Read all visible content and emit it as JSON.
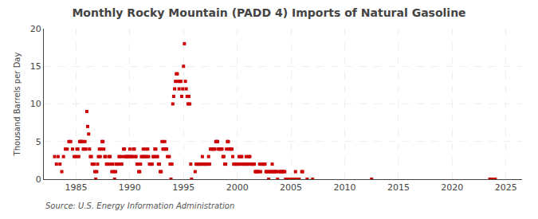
{
  "chart_data": {
    "type": "scatter",
    "title": "Monthly Rocky Mountain (PADD 4) Imports of Natural Gasoline",
    "ylabel": "Thousand Barrels per Day",
    "annotations": [
      "Source: U.S. Energy Information Administration"
    ],
    "xlim": [
      1982.0,
      2026.5
    ],
    "ylim": [
      0,
      20
    ],
    "xticks": [
      1985,
      1990,
      1995,
      2000,
      2005,
      2010,
      2015,
      2020,
      2025
    ],
    "yticks": [
      0,
      5,
      10,
      15,
      20
    ],
    "grid": true,
    "color": "#cc0000",
    "marker": "square",
    "x": [
      1983.0,
      1983.17,
      1983.33,
      1983.5,
      1983.67,
      1983.83,
      1984.0,
      1984.17,
      1984.33,
      1984.5,
      1984.67,
      1984.83,
      1985.0,
      1985.08,
      1985.17,
      1985.25,
      1985.33,
      1985.42,
      1985.5,
      1985.58,
      1985.67,
      1985.75,
      1985.83,
      1985.92,
      1986.0,
      1986.08,
      1986.17,
      1986.25,
      1986.33,
      1986.42,
      1986.5,
      1986.58,
      1986.67,
      1986.75,
      1986.83,
      1986.92,
      1987.0,
      1987.08,
      1987.17,
      1987.25,
      1987.33,
      1987.42,
      1987.5,
      1987.58,
      1987.67,
      1987.75,
      1987.83,
      1987.92,
      1988.0,
      1988.08,
      1988.17,
      1988.25,
      1988.33,
      1988.42,
      1988.5,
      1988.58,
      1988.67,
      1988.75,
      1988.83,
      1988.92,
      1989.0,
      1989.08,
      1989.17,
      1989.25,
      1989.33,
      1989.42,
      1989.5,
      1989.58,
      1989.67,
      1989.75,
      1989.83,
      1989.92,
      1990.0,
      1990.08,
      1990.17,
      1990.25,
      1990.33,
      1990.42,
      1990.5,
      1990.58,
      1990.67,
      1990.75,
      1990.83,
      1990.92,
      1991.0,
      1991.08,
      1991.17,
      1991.25,
      1991.33,
      1991.42,
      1991.5,
      1991.58,
      1991.67,
      1991.75,
      1991.83,
      1991.92,
      1992.0,
      1992.08,
      1992.17,
      1992.25,
      1992.33,
      1992.42,
      1992.5,
      1992.58,
      1992.67,
      1992.75,
      1992.83,
      1992.92,
      1993.0,
      1993.08,
      1993.17,
      1993.25,
      1993.33,
      1993.42,
      1993.5,
      1993.67,
      1993.75,
      1993.83,
      1993.92,
      1994.0,
      1994.08,
      1994.17,
      1994.25,
      1994.33,
      1994.42,
      1994.5,
      1994.58,
      1994.67,
      1994.75,
      1994.83,
      1994.92,
      1995.0,
      1995.08,
      1995.17,
      1995.25,
      1995.33,
      1995.42,
      1995.5,
      1995.58,
      1995.67,
      1995.75,
      1996.08,
      1996.17,
      1996.25,
      1996.33,
      1996.42,
      1996.5,
      1996.58,
      1996.67,
      1996.75,
      1996.83,
      1996.92,
      1997.0,
      1997.08,
      1997.17,
      1997.25,
      1997.33,
      1997.42,
      1997.5,
      1997.58,
      1997.67,
      1997.75,
      1997.83,
      1997.92,
      1998.0,
      1998.08,
      1998.17,
      1998.25,
      1998.33,
      1998.42,
      1998.5,
      1998.58,
      1998.67,
      1998.75,
      1998.83,
      1998.92,
      1999.0,
      1999.08,
      1999.17,
      1999.25,
      1999.33,
      1999.42,
      1999.5,
      1999.58,
      1999.67,
      1999.75,
      1999.83,
      1999.92,
      2000.0,
      2000.08,
      2000.17,
      2000.25,
      2000.33,
      2000.42,
      2000.5,
      2000.58,
      2000.67,
      2000.75,
      2000.83,
      2000.92,
      2001.0,
      2001.08,
      2001.17,
      2001.25,
      2001.33,
      2001.42,
      2001.5,
      2001.58,
      2001.67,
      2001.75,
      2001.83,
      2001.92,
      2002.0,
      2002.08,
      2002.17,
      2002.25,
      2002.33,
      2002.42,
      2002.5,
      2002.58,
      2002.67,
      2002.75,
      2002.83,
      2002.92,
      2003.0,
      2003.08,
      2003.17,
      2003.25,
      2003.33,
      2003.42,
      2003.5,
      2003.58,
      2003.67,
      2003.75,
      2003.92,
      2004.0,
      2004.08,
      2004.17,
      2004.25,
      2004.33,
      2004.42,
      2004.5,
      2004.67,
      2004.75,
      2005.0,
      2005.08,
      2005.17,
      2005.33,
      2005.42,
      2005.5,
      2005.67,
      2005.75,
      2006.0,
      2006.08,
      2006.5,
      2007.0,
      2012.5,
      2023.5,
      2023.67,
      2023.83,
      2024.0
    ],
    "values": [
      3,
      2,
      3,
      2,
      1,
      3,
      4,
      4,
      5,
      5,
      4,
      3,
      3,
      4,
      4,
      3,
      5,
      5,
      5,
      5,
      4,
      4,
      5,
      4,
      9,
      7,
      6,
      4,
      3,
      3,
      2,
      2,
      2,
      1,
      0,
      1,
      2,
      3,
      4,
      3,
      4,
      5,
      5,
      4,
      3,
      3,
      2,
      2,
      2,
      3,
      3,
      2,
      1,
      2,
      1,
      0,
      1,
      2,
      2,
      2,
      3,
      3,
      2,
      2,
      3,
      4,
      4,
      3,
      3,
      3,
      3,
      3,
      4,
      3,
      3,
      3,
      4,
      4,
      3,
      3,
      2,
      2,
      1,
      1,
      2,
      3,
      3,
      4,
      3,
      3,
      4,
      3,
      4,
      3,
      2,
      2,
      2,
      2,
      3,
      3,
      4,
      4,
      3,
      3,
      2,
      2,
      1,
      1,
      5,
      4,
      4,
      5,
      4,
      4,
      3,
      3,
      2,
      0,
      2,
      10,
      11,
      12,
      13,
      14,
      14,
      13,
      12,
      13,
      13,
      11,
      12,
      15,
      18,
      13,
      12,
      11,
      10,
      11,
      10,
      2,
      0,
      1,
      2,
      2,
      2,
      2,
      2,
      2,
      2,
      3,
      2,
      2,
      2,
      2,
      2,
      2,
      3,
      2,
      4,
      4,
      4,
      4,
      4,
      4,
      5,
      5,
      5,
      4,
      4,
      4,
      4,
      4,
      3,
      3,
      2,
      2,
      4,
      5,
      5,
      4,
      4,
      4,
      4,
      3,
      2,
      2,
      2,
      2,
      2,
      2,
      3,
      2,
      3,
      3,
      2,
      2,
      2,
      2,
      3,
      2,
      2,
      3,
      3,
      2,
      2,
      2,
      2,
      2,
      1,
      1,
      1,
      1,
      1,
      2,
      1,
      2,
      2,
      2,
      2,
      2,
      1,
      1,
      1,
      0,
      1,
      1,
      1,
      2,
      1,
      1,
      1,
      1,
      1,
      0,
      1,
      1,
      1,
      1,
      1,
      1,
      1,
      0,
      0,
      0,
      0,
      0,
      0,
      0,
      1,
      0,
      0,
      0,
      1,
      1,
      0,
      0,
      0,
      0,
      0,
      0,
      0
    ]
  }
}
